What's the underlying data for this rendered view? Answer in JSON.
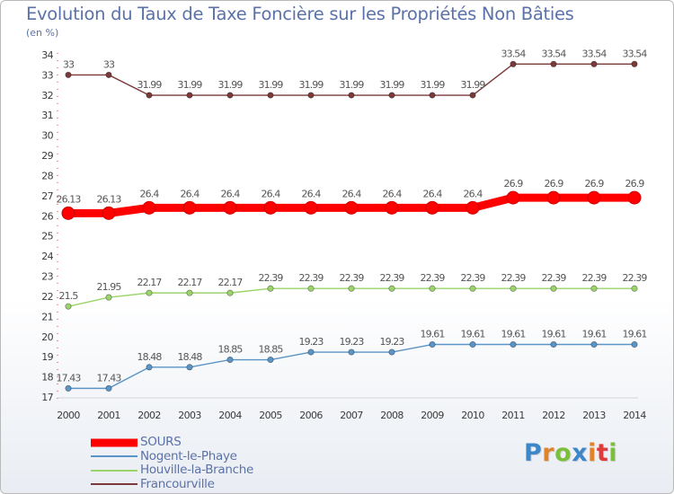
{
  "chart_data": {
    "type": "line",
    "title": "Evolution du Taux de Taxe Foncière sur les Propriétés Non Bâties",
    "subtitle": "(en %)",
    "xlabel": "",
    "ylabel": "(en %)",
    "ylim": [
      17,
      34
    ],
    "yticks": [
      17,
      18,
      19,
      20,
      21,
      22,
      23,
      24,
      25,
      26,
      27,
      28,
      29,
      30,
      31,
      32,
      33,
      34
    ],
    "x": [
      "2000",
      "2001",
      "2002",
      "2003",
      "2004",
      "2005",
      "2006",
      "2007",
      "2008",
      "2009",
      "2010",
      "2011",
      "2012",
      "2013",
      "2014"
    ],
    "series": [
      {
        "name": "SOURS",
        "color": "#ff0000",
        "values": [
          26.13,
          26.13,
          26.4,
          26.4,
          26.4,
          26.4,
          26.4,
          26.4,
          26.4,
          26.4,
          26.4,
          26.9,
          26.9,
          26.9,
          26.9
        ],
        "labels": [
          "26.13",
          "26.13",
          "26.4",
          "26.4",
          "26.4",
          "26.4",
          "26.4",
          "26.4",
          "26.4",
          "26.4",
          "26.4",
          "26.9",
          "26.9",
          "26.9",
          "26.9"
        ]
      },
      {
        "name": "Nogent-le-Phaye",
        "color": "#5b95c7",
        "values": [
          17.43,
          17.43,
          18.48,
          18.48,
          18.85,
          18.85,
          19.23,
          19.23,
          19.23,
          19.61,
          19.61,
          19.61,
          19.61,
          19.61,
          19.61
        ],
        "labels": [
          "17.43",
          "17.43",
          "18.48",
          "18.48",
          "18.85",
          "18.85",
          "19.23",
          "19.23",
          "19.23",
          "19.61",
          "19.61",
          "19.61",
          "19.61",
          "19.61",
          "19.61"
        ]
      },
      {
        "name": "Houville-la-Branche",
        "color": "#9ad46a",
        "values": [
          21.5,
          21.95,
          22.17,
          22.17,
          22.17,
          22.39,
          22.39,
          22.39,
          22.39,
          22.39,
          22.39,
          22.39,
          22.39,
          22.39,
          22.39
        ],
        "labels": [
          "21.5",
          "21.95",
          "22.17",
          "22.17",
          "22.17",
          "22.39",
          "22.39",
          "22.39",
          "22.39",
          "22.39",
          "22.39",
          "22.39",
          "22.39",
          "22.39",
          "22.39"
        ]
      },
      {
        "name": "Francourville",
        "color": "#7a3a3a",
        "values": [
          33,
          33,
          31.99,
          31.99,
          31.99,
          31.99,
          31.99,
          31.99,
          31.99,
          31.99,
          31.99,
          33.54,
          33.54,
          33.54,
          33.54
        ],
        "labels": [
          "33",
          "33",
          "31.99",
          "31.99",
          "31.99",
          "31.99",
          "31.99",
          "31.99",
          "31.99",
          "31.99",
          "31.99",
          "33.54",
          "33.54",
          "33.54",
          "33.54"
        ]
      }
    ],
    "legend_position": "bottom-left"
  },
  "logo": {
    "letters": [
      "P",
      "r",
      "o",
      "x",
      "i",
      "t",
      "i"
    ],
    "colors": [
      "#3d86c8",
      "#e0832a",
      "#7bbf3a",
      "#3d86c8",
      "#e0832a",
      "#e03a3a",
      "#7bbf3a"
    ]
  }
}
